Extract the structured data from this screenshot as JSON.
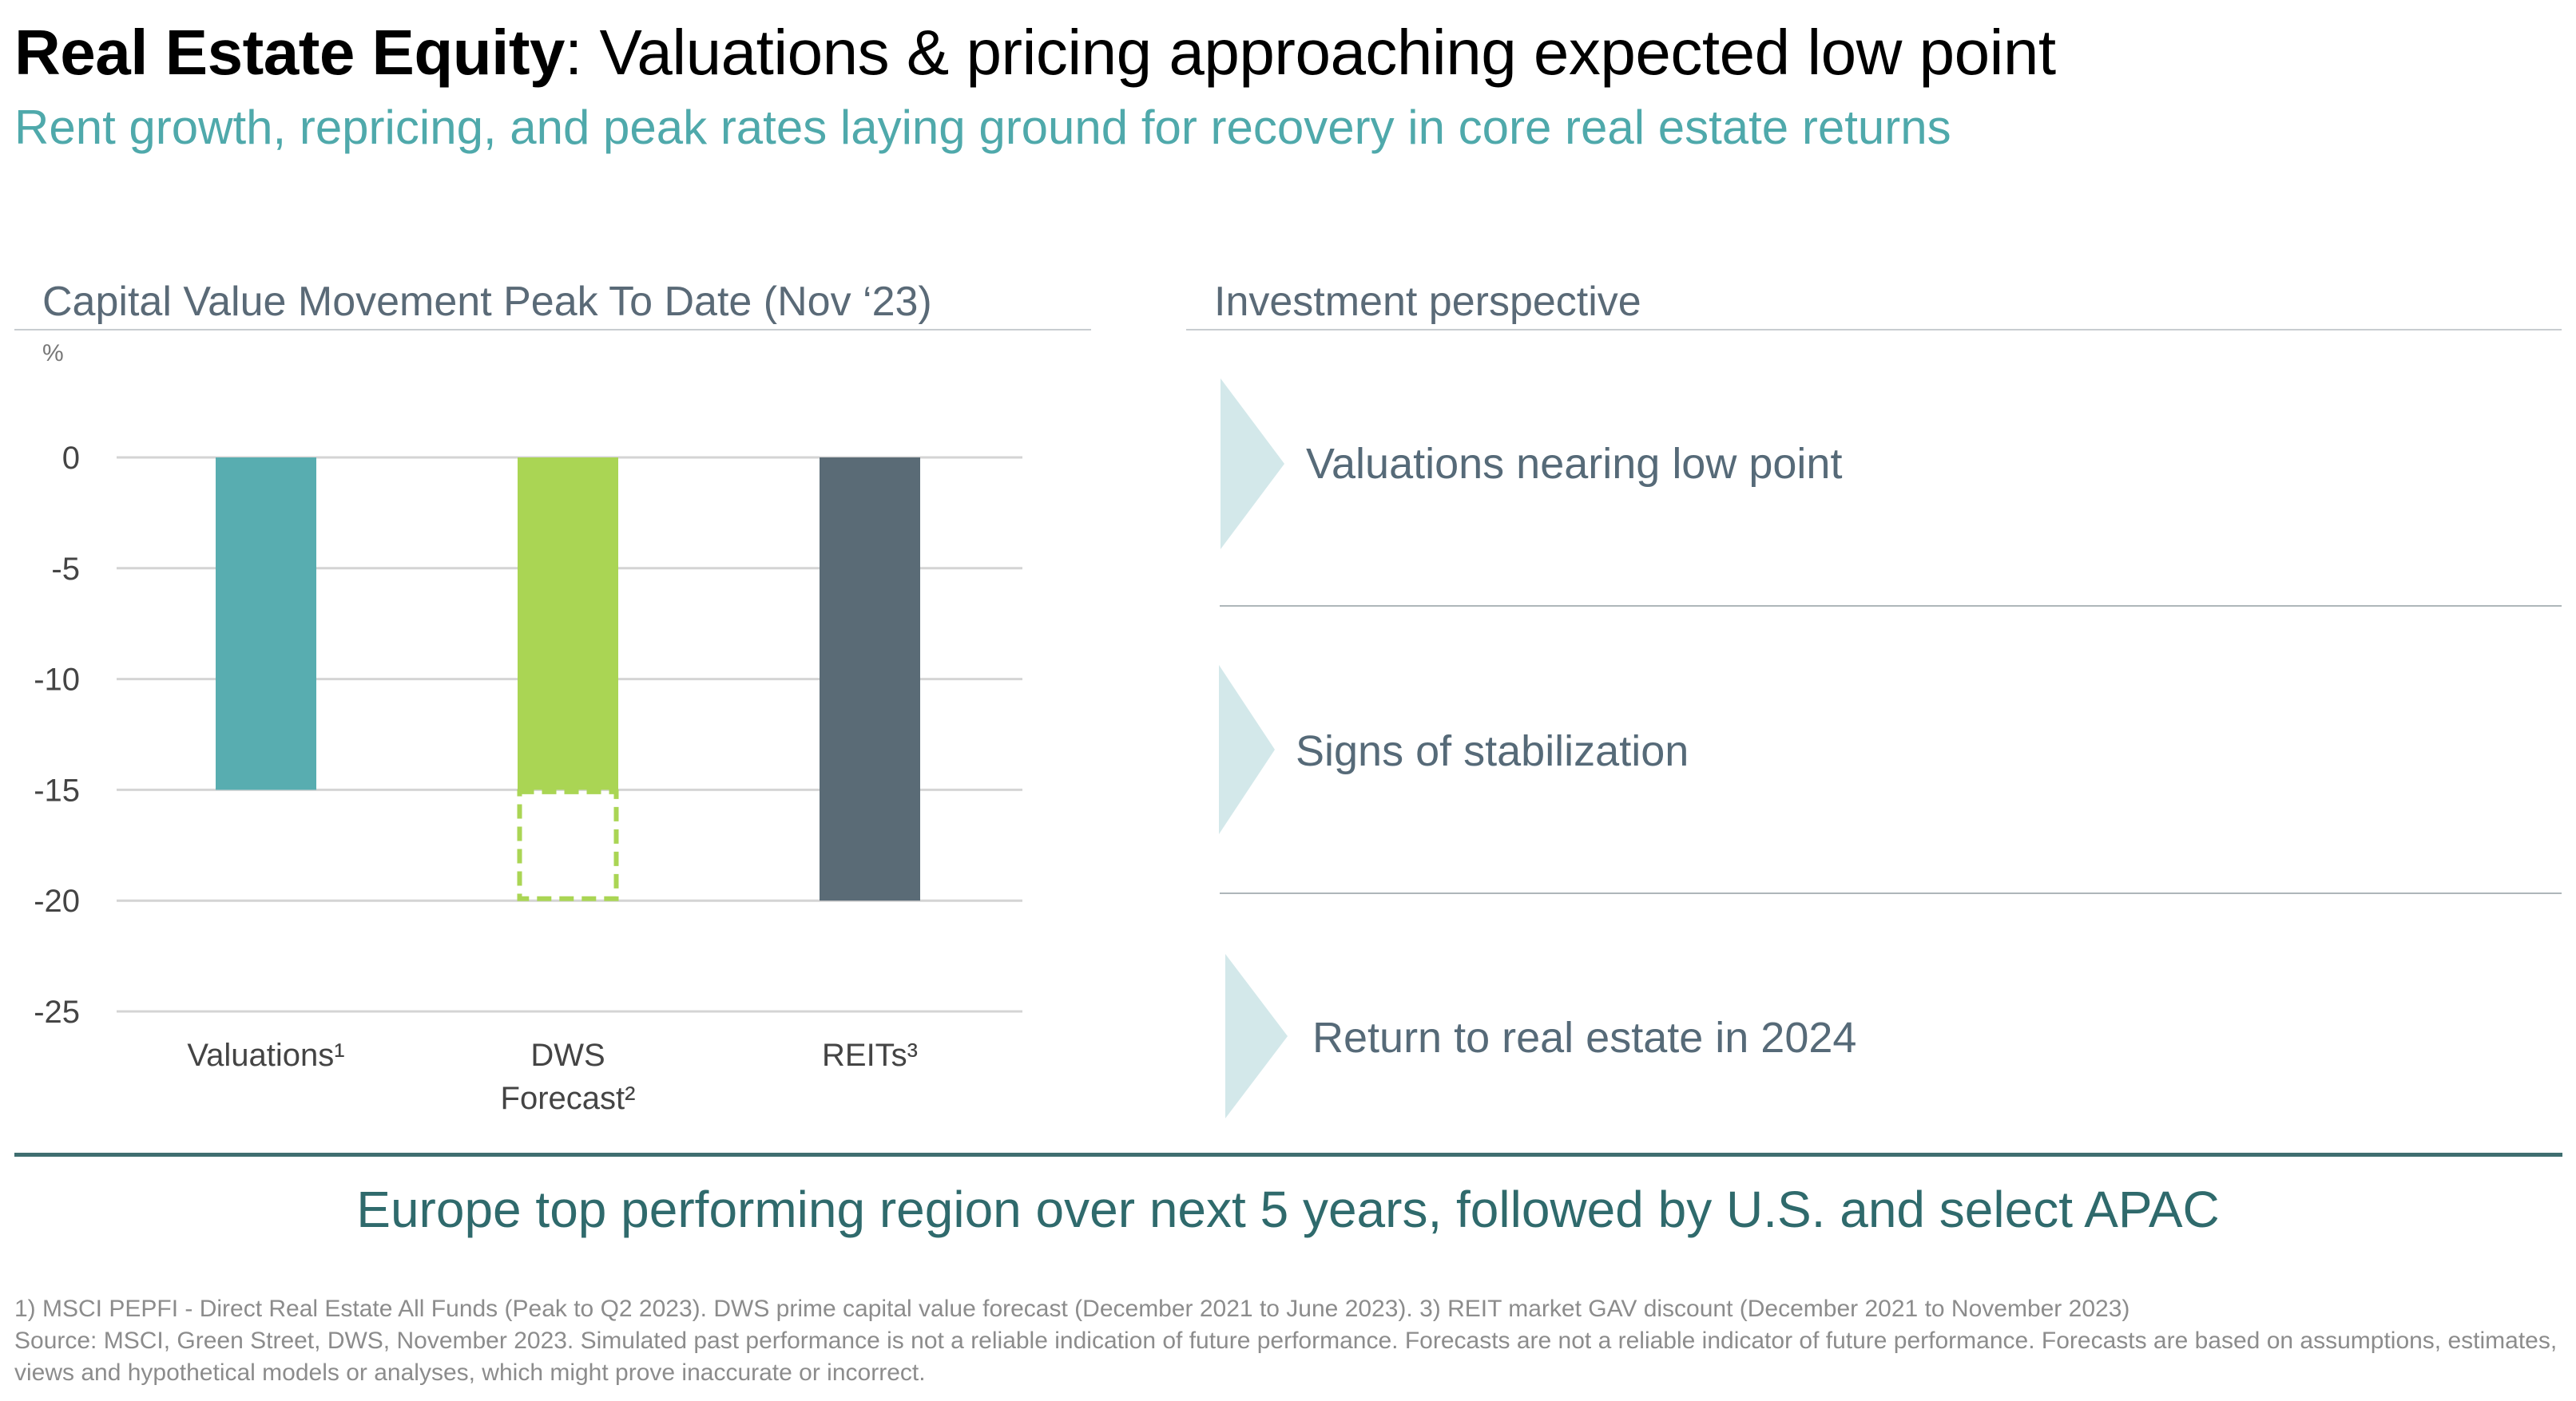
{
  "header": {
    "title_bold": "Real Estate Equity",
    "title_rest": ": Valuations & pricing approaching expected low point",
    "subtitle": "Rent growth, repricing, and peak rates laying ground for recovery in core real estate returns"
  },
  "left_panel": {
    "title": "Capital Value Movement Peak To Date (Nov ‘23)"
  },
  "right_panel": {
    "title": "Investment perspective",
    "items": [
      {
        "label": "Valuations nearing low point",
        "icon": "chevron-right-icon"
      },
      {
        "label": "Signs of stabilization",
        "icon": "chevron-right-icon"
      },
      {
        "label": "Return to real estate in 2024",
        "icon": "chevron-right-icon"
      }
    ]
  },
  "chart_data": {
    "type": "bar",
    "title": "Capital Value Movement Peak To Date (Nov ‘23)",
    "ylabel": "%",
    "ylim": [
      -25,
      0
    ],
    "yticks": [
      0,
      -5,
      -10,
      -15,
      -20,
      -25
    ],
    "grid": true,
    "categories": [
      "Valuations¹",
      "DWS Forecast²",
      "REITs³"
    ],
    "category_lines": [
      [
        "Valuations¹"
      ],
      [
        "DWS",
        "Forecast²"
      ],
      [
        "REITs³"
      ]
    ],
    "values": [
      -15,
      -15,
      -20
    ],
    "forecast_extension": {
      "category": "DWS Forecast²",
      "from": -15,
      "to": -20,
      "style": "dashed"
    },
    "colors": [
      "#58adb0",
      "#aad554",
      "#5a6b76"
    ]
  },
  "bottom": {
    "message": "Europe top performing region over next 5 years, followed by U.S. and select APAC"
  },
  "footnotes": {
    "line1": "1) MSCI PEPFI - Direct Real Estate All Funds (Peak to Q2 2023). DWS prime capital value forecast (December 2021 to June 2023). 3) REIT market GAV discount (December 2021 to November 2023)",
    "line2": "Source: MSCI, Green Street, DWS, November 2023. Simulated past performance is not a reliable indication of future performance. Forecasts are not a reliable indicator of future performance. Forecasts are based on assumptions, estimates, views and hypothetical models or analyses, which might prove inaccurate or incorrect."
  },
  "colors": {
    "accent_teal": "#4fa9ab",
    "chevron": "#d3e8ea",
    "bottom_text": "#2f6a6c"
  }
}
